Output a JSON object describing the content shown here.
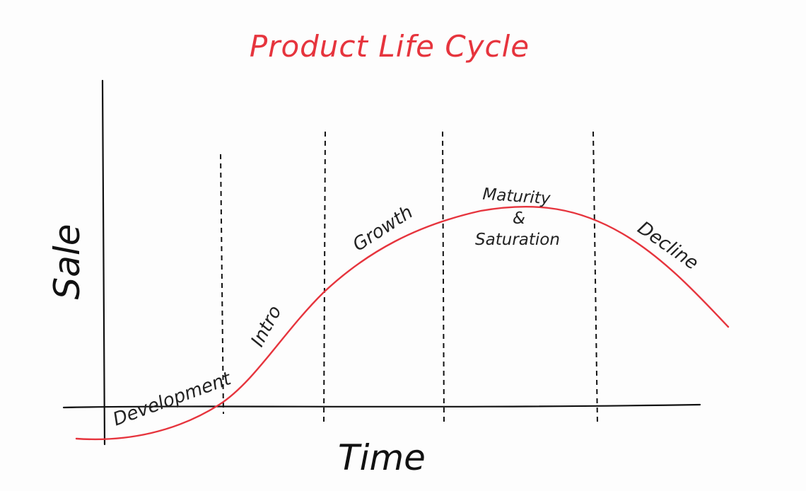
{
  "title": "Product Life Cycle",
  "axes": {
    "y_label": "Sale",
    "x_label": "Time"
  },
  "stages": [
    {
      "name": "Development"
    },
    {
      "name": "Intro"
    },
    {
      "name": "Growth"
    },
    {
      "name": "Maturity",
      "and": "&",
      "second": "Saturation"
    },
    {
      "name": "Decline"
    }
  ],
  "colors": {
    "accent": "#e6343d",
    "ink": "#111111",
    "background": "#fdfdfd"
  }
}
